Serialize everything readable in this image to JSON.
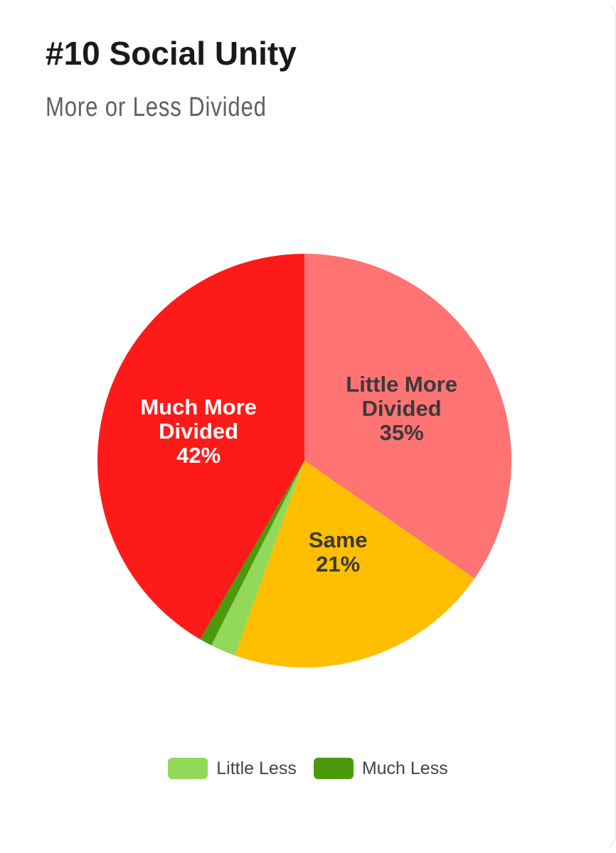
{
  "chart_data": {
    "type": "pie",
    "title": "#10 Social Unity",
    "subtitle": "More or Less Divided",
    "categories": [
      "Little More Divided",
      "Same",
      "Little Less",
      "Much Less",
      "Much More Divided"
    ],
    "values": [
      35,
      21,
      2,
      1,
      42
    ],
    "value_labels": [
      "35%",
      "21%",
      null,
      null,
      "42%"
    ],
    "colors": [
      "#ff7373",
      "#ffbf00",
      "#92d95a",
      "#4a9a0c",
      "#ff1a1a"
    ],
    "label_colors": [
      "#3a3a3a",
      "#3a3a3a",
      null,
      null,
      "#ffffff"
    ],
    "legend": "bottom"
  }
}
